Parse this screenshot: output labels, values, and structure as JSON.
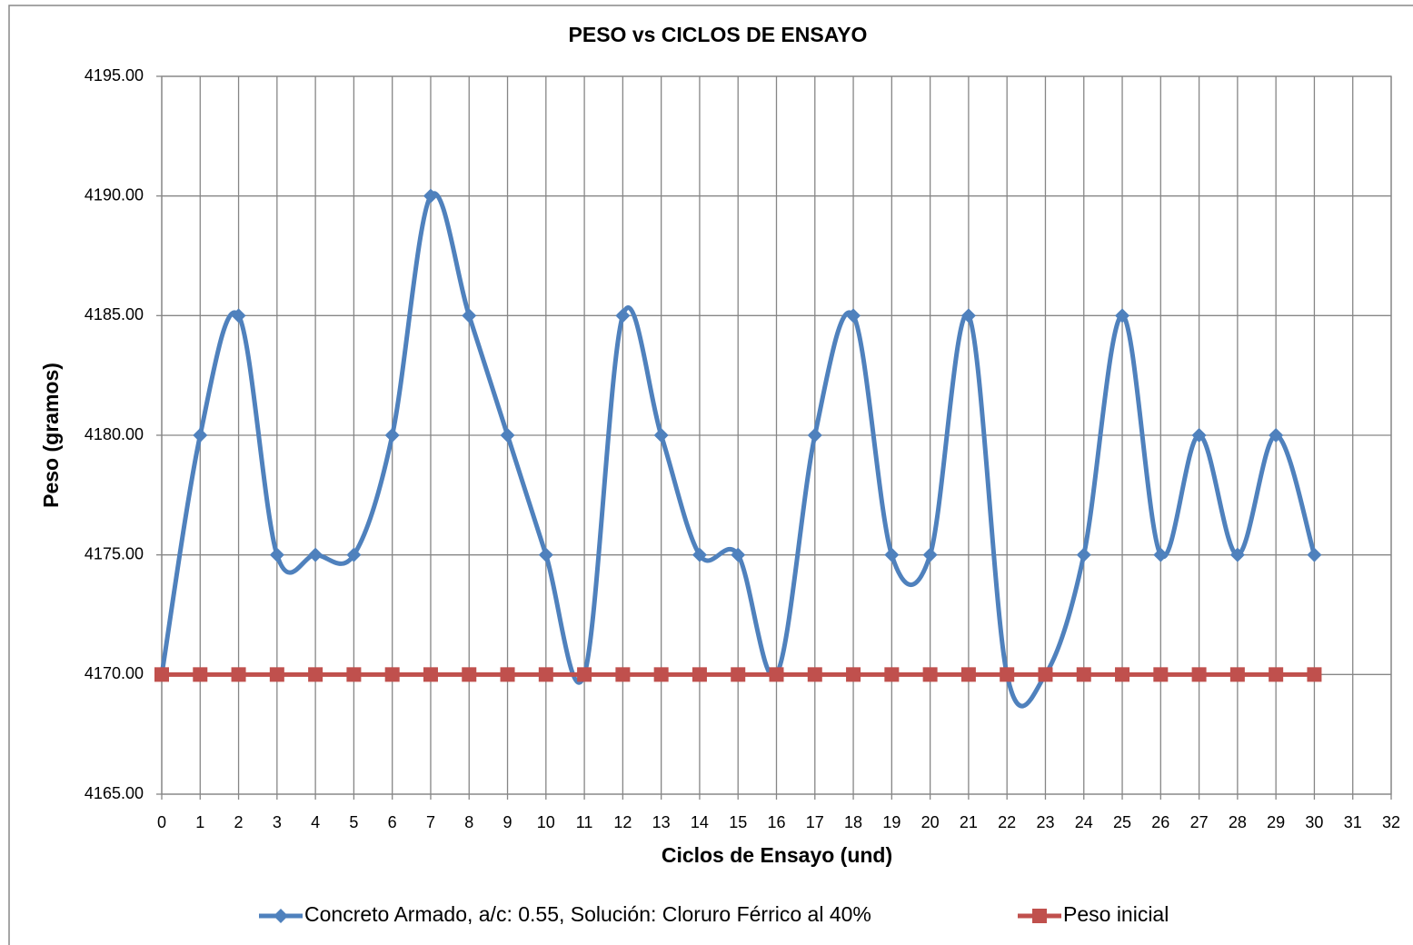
{
  "chart_data": {
    "type": "line",
    "title": "PESO vs CICLOS DE ENSAYO",
    "x_label": "Ciclos de Ensayo (und)",
    "y_label": "Peso (gramos)",
    "x": [
      0,
      1,
      2,
      3,
      4,
      5,
      6,
      7,
      8,
      9,
      10,
      11,
      12,
      13,
      14,
      15,
      16,
      17,
      18,
      19,
      20,
      21,
      22,
      23,
      24,
      25,
      26,
      27,
      28,
      29,
      30
    ],
    "series": [
      {
        "name": "Concreto Armado, a/c: 0.55, Solución: Cloruro Férrico al 40%",
        "color": "#4f81bd",
        "marker": "diamond",
        "smooth": true,
        "values": [
          4170,
          4180,
          4185,
          4175,
          4175,
          4175,
          4180,
          4190,
          4185,
          4180,
          4175,
          4170,
          4185,
          4180,
          4175,
          4175,
          4170,
          4180,
          4185,
          4175,
          4175,
          4185,
          4170,
          4170,
          4175,
          4185,
          4175,
          4180,
          4175,
          4180,
          4175
        ]
      },
      {
        "name": "Peso inicial",
        "color": "#c0504d",
        "marker": "square",
        "smooth": false,
        "values": [
          4170,
          4170,
          4170,
          4170,
          4170,
          4170,
          4170,
          4170,
          4170,
          4170,
          4170,
          4170,
          4170,
          4170,
          4170,
          4170,
          4170,
          4170,
          4170,
          4170,
          4170,
          4170,
          4170,
          4170,
          4170,
          4170,
          4170,
          4170,
          4170,
          4170,
          4170
        ]
      }
    ],
    "xlim": [
      0,
      32
    ],
    "xticks": [
      0,
      1,
      2,
      3,
      4,
      5,
      6,
      7,
      8,
      9,
      10,
      11,
      12,
      13,
      14,
      15,
      16,
      17,
      18,
      19,
      20,
      21,
      22,
      23,
      24,
      25,
      26,
      27,
      28,
      29,
      30,
      31,
      32
    ],
    "ylim": [
      4165,
      4195
    ],
    "yticks": [
      {
        "value": 4165,
        "label": "4165.00"
      },
      {
        "value": 4170,
        "label": "4170.00"
      },
      {
        "value": 4175,
        "label": "4175.00"
      },
      {
        "value": 4180,
        "label": "4180.00"
      },
      {
        "value": 4185,
        "label": "4185.00"
      },
      {
        "value": 4190,
        "label": "4190.00"
      },
      {
        "value": 4195,
        "label": "4195.00"
      }
    ],
    "grid": true,
    "legend": "bottom"
  }
}
